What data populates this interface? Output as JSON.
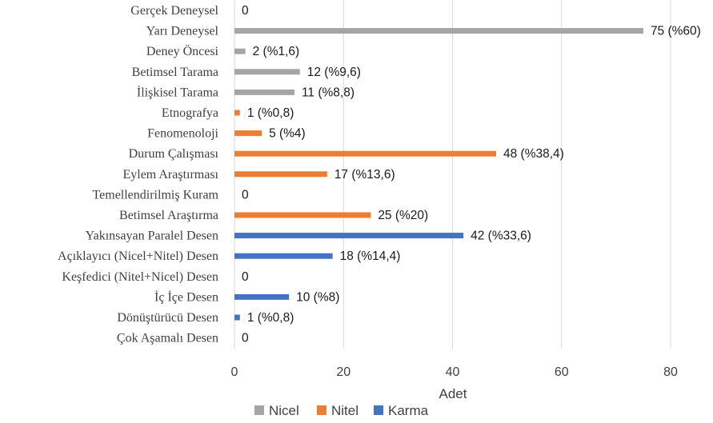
{
  "chart_data": {
    "type": "bar",
    "orientation": "horizontal",
    "categories": [
      "Gerçek Deneysel",
      "Yarı Deneysel",
      "Deney Öncesi",
      "Betimsel Tarama",
      "İlişkisel Tarama",
      "Etnografya",
      "Fenomenoloji",
      "Durum Çalışması",
      "Eylem Araştırması",
      "Temellendirilmiş Kuram",
      "Betimsel Araştırma",
      "Yakınsayan Paralel Desen",
      "Açıklayıcı (Nicel+Nitel) Desen",
      "Keşfedici (Nitel+Nicel) Desen",
      "İç İçe Desen",
      "Dönüştürücü Desen",
      "Çok Aşamalı Desen"
    ],
    "values": [
      0,
      75,
      2,
      12,
      11,
      1,
      5,
      48,
      17,
      0,
      25,
      42,
      18,
      0,
      10,
      1,
      0
    ],
    "data_labels": [
      "0",
      "75 (%60)",
      "2 (%1,6)",
      "12 (%9,6)",
      "11 (%8,8)",
      "1 (%0,8)",
      "5 (%4)",
      "48 (%38,4)",
      "17 (%13,6)",
      "0",
      "25 (%20)",
      "42 (%33,6)",
      "18 (%14,4)",
      "0",
      "10 (%8)",
      "1 (%0,8)",
      "0"
    ],
    "groups": [
      "Nicel",
      "Nicel",
      "Nicel",
      "Nicel",
      "Nicel",
      "Nitel",
      "Nitel",
      "Nitel",
      "Nitel",
      "Nitel",
      "Nitel",
      "Karma",
      "Karma",
      "Karma",
      "Karma",
      "Karma",
      "Karma"
    ],
    "series": [
      {
        "name": "Nicel",
        "color": "#a5a5a5"
      },
      {
        "name": "Nitel",
        "color": "#ed7d31"
      },
      {
        "name": "Karma",
        "color": "#4472c4"
      }
    ],
    "xlabel": "Adet",
    "ylabel": "",
    "title": "",
    "xlim": [
      0,
      80
    ],
    "xticks": [
      0,
      20,
      40,
      60,
      80
    ],
    "xtick_labels": [
      "0",
      "20",
      "40",
      "60",
      "80"
    ],
    "grid": "vertical",
    "legend_position": "bottom",
    "gridline_color": "#d9d9d9"
  }
}
